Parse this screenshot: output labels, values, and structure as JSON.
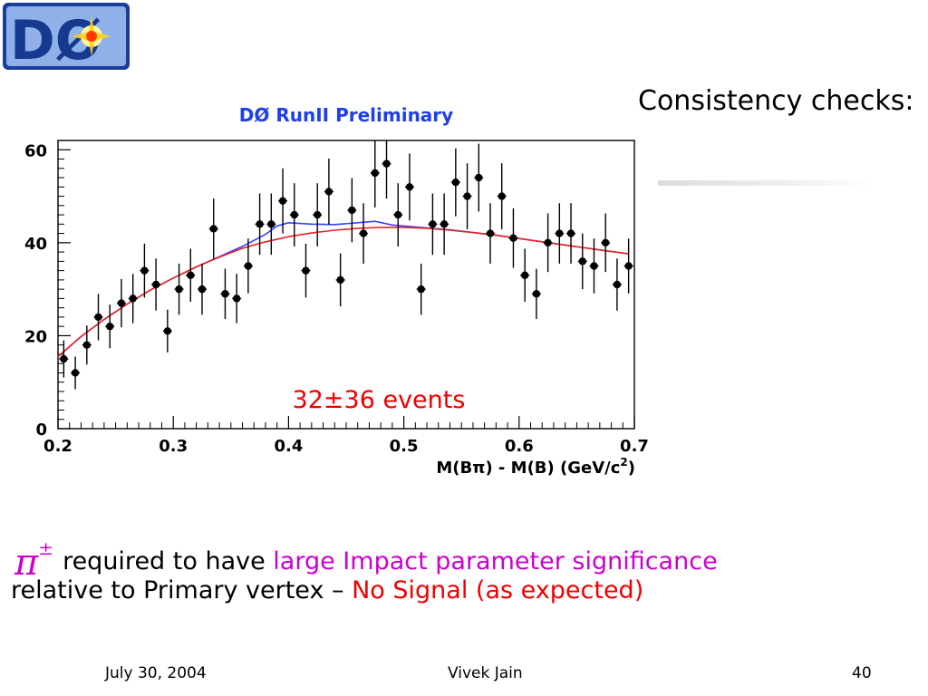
{
  "logo": {
    "text": "DØ"
  },
  "slide": {
    "headline": "Consistency checks:",
    "bullet": {
      "symbol": "π",
      "symbol_sup": "±",
      "text1": "required to have ",
      "highlight1": "large Impact parameter significance",
      "text2": "relative to Primary vertex – ",
      "highlight2": "No Signal (as expected)"
    }
  },
  "footer": {
    "date": "July 30, 2004",
    "author": "Vivek Jain",
    "page": "40"
  },
  "colors": {
    "title": "#1f3fe8",
    "annotation": "#ee0000",
    "highlight": "#cc00cc",
    "fit_blue": "#3344ff",
    "fit_red": "#ee2222"
  },
  "chart_data": {
    "type": "scatter",
    "title": "DØ RunII  Preliminary",
    "xlabel": "M(Bπ) - M(B) (GeV/c",
    "xlabel_sup": "2",
    "xlabel_end": ")",
    "annotation": "32±36 events",
    "xlim": [
      0.2,
      0.7
    ],
    "ylim": [
      0,
      62
    ],
    "xticks": [
      "0.2",
      "0.3",
      "0.4",
      "0.5",
      "0.6",
      "0.7"
    ],
    "yticks": [
      "0",
      "20",
      "40",
      "60"
    ],
    "series": [
      {
        "type": "errorbar",
        "x": [
          0.205,
          0.215,
          0.225,
          0.235,
          0.245,
          0.255,
          0.265,
          0.275,
          0.285,
          0.295,
          0.305,
          0.315,
          0.325,
          0.335,
          0.345,
          0.355,
          0.365,
          0.375,
          0.385,
          0.395,
          0.405,
          0.415,
          0.425,
          0.435,
          0.445,
          0.455,
          0.465,
          0.475,
          0.485,
          0.495,
          0.505,
          0.515,
          0.525,
          0.535,
          0.545,
          0.555,
          0.565,
          0.575,
          0.585,
          0.595,
          0.605,
          0.615,
          0.625,
          0.635,
          0.645,
          0.655,
          0.665,
          0.675,
          0.685,
          0.695
        ],
        "y": [
          15,
          12,
          18,
          24,
          22,
          27,
          28,
          34,
          31,
          21,
          30,
          33,
          30,
          43,
          29,
          28,
          35,
          44,
          44,
          49,
          46,
          34,
          46,
          51,
          32,
          47,
          42,
          55,
          57,
          46,
          52,
          30,
          44,
          44,
          53,
          50,
          54,
          42,
          50,
          41,
          33,
          29,
          40,
          42,
          42,
          36,
          35,
          40,
          31,
          35
        ],
        "yerr": [
          4,
          3.5,
          4.2,
          5,
          4.7,
          5.2,
          5.3,
          5.8,
          5.6,
          4.6,
          5.5,
          5.7,
          5.5,
          6.5,
          5.4,
          5.3,
          5.9,
          6.6,
          6.6,
          7,
          6.8,
          5.8,
          6.8,
          7.1,
          5.7,
          6.9,
          6.5,
          7.4,
          7.5,
          6.8,
          7.2,
          5.5,
          6.6,
          6.6,
          7.3,
          7.1,
          7.3,
          6.5,
          7.1,
          6.4,
          5.7,
          5.4,
          6.3,
          6.5,
          6.5,
          6,
          5.9,
          6.3,
          5.6,
          5.9
        ]
      },
      {
        "type": "line",
        "x": [
          0.2,
          0.22,
          0.24,
          0.26,
          0.28,
          0.3,
          0.32,
          0.34,
          0.36,
          0.38,
          0.4,
          0.42,
          0.44,
          0.46,
          0.48,
          0.5,
          0.52,
          0.54,
          0.56,
          0.58,
          0.6,
          0.62,
          0.64,
          0.66,
          0.68,
          0.695
        ],
        "y": [
          15.5,
          19.8,
          23.5,
          26.8,
          29.8,
          32.4,
          34.8,
          36.9,
          38.8,
          40.2,
          41.3,
          42.1,
          42.7,
          43.1,
          43.3,
          43.3,
          43.1,
          42.7,
          42.2,
          41.6,
          40.9,
          40.2,
          39.5,
          38.8,
          38.1,
          37.6
        ]
      },
      {
        "type": "line",
        "x": [
          0.2,
          0.22,
          0.24,
          0.26,
          0.28,
          0.3,
          0.32,
          0.34,
          0.36,
          0.38,
          0.39,
          0.4,
          0.42,
          0.44,
          0.46,
          0.475,
          0.49,
          0.51,
          0.54,
          0.56,
          0.58,
          0.6,
          0.62,
          0.64,
          0.66,
          0.68,
          0.695
        ],
        "y": [
          15.5,
          19.8,
          23.5,
          26.8,
          29.8,
          32.4,
          34.8,
          37.0,
          39.2,
          41.8,
          43.6,
          44.3,
          44.0,
          43.9,
          44.3,
          44.6,
          43.8,
          43.4,
          42.8,
          42.2,
          41.6,
          40.9,
          40.2,
          39.5,
          38.8,
          38.1,
          37.6
        ]
      }
    ],
    "grid": false
  }
}
